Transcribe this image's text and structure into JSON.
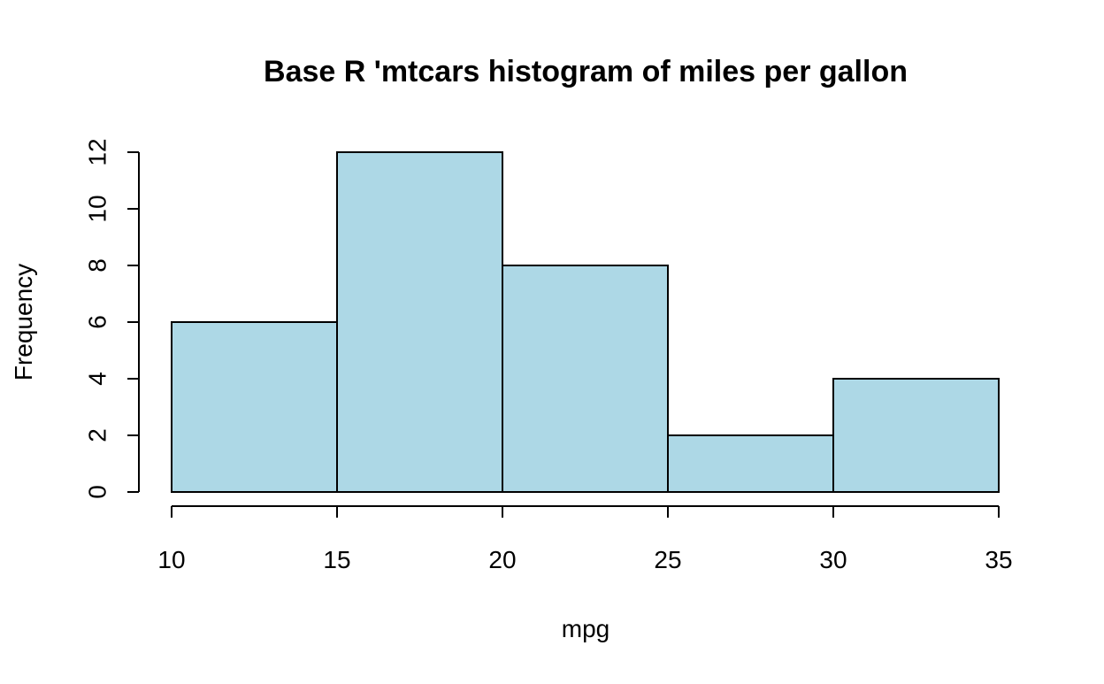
{
  "chart_data": {
    "type": "bar",
    "title": "Base R 'mtcars histogram of miles per gallon",
    "xlabel": "mpg",
    "ylabel": "Frequency",
    "bins": [
      {
        "start": 10,
        "end": 15,
        "count": 6
      },
      {
        "start": 15,
        "end": 20,
        "count": 12
      },
      {
        "start": 20,
        "end": 25,
        "count": 8
      },
      {
        "start": 25,
        "end": 30,
        "count": 2
      },
      {
        "start": 30,
        "end": 35,
        "count": 4
      }
    ],
    "xlim": [
      10,
      35
    ],
    "ylim": [
      0,
      12
    ],
    "x_ticks": [
      "10",
      "15",
      "20",
      "25",
      "30",
      "35"
    ],
    "y_ticks": [
      "0",
      "2",
      "4",
      "6",
      "8",
      "10",
      "12"
    ],
    "grid": false,
    "bar_color": "#add8e6",
    "edge_color": "#000000"
  }
}
